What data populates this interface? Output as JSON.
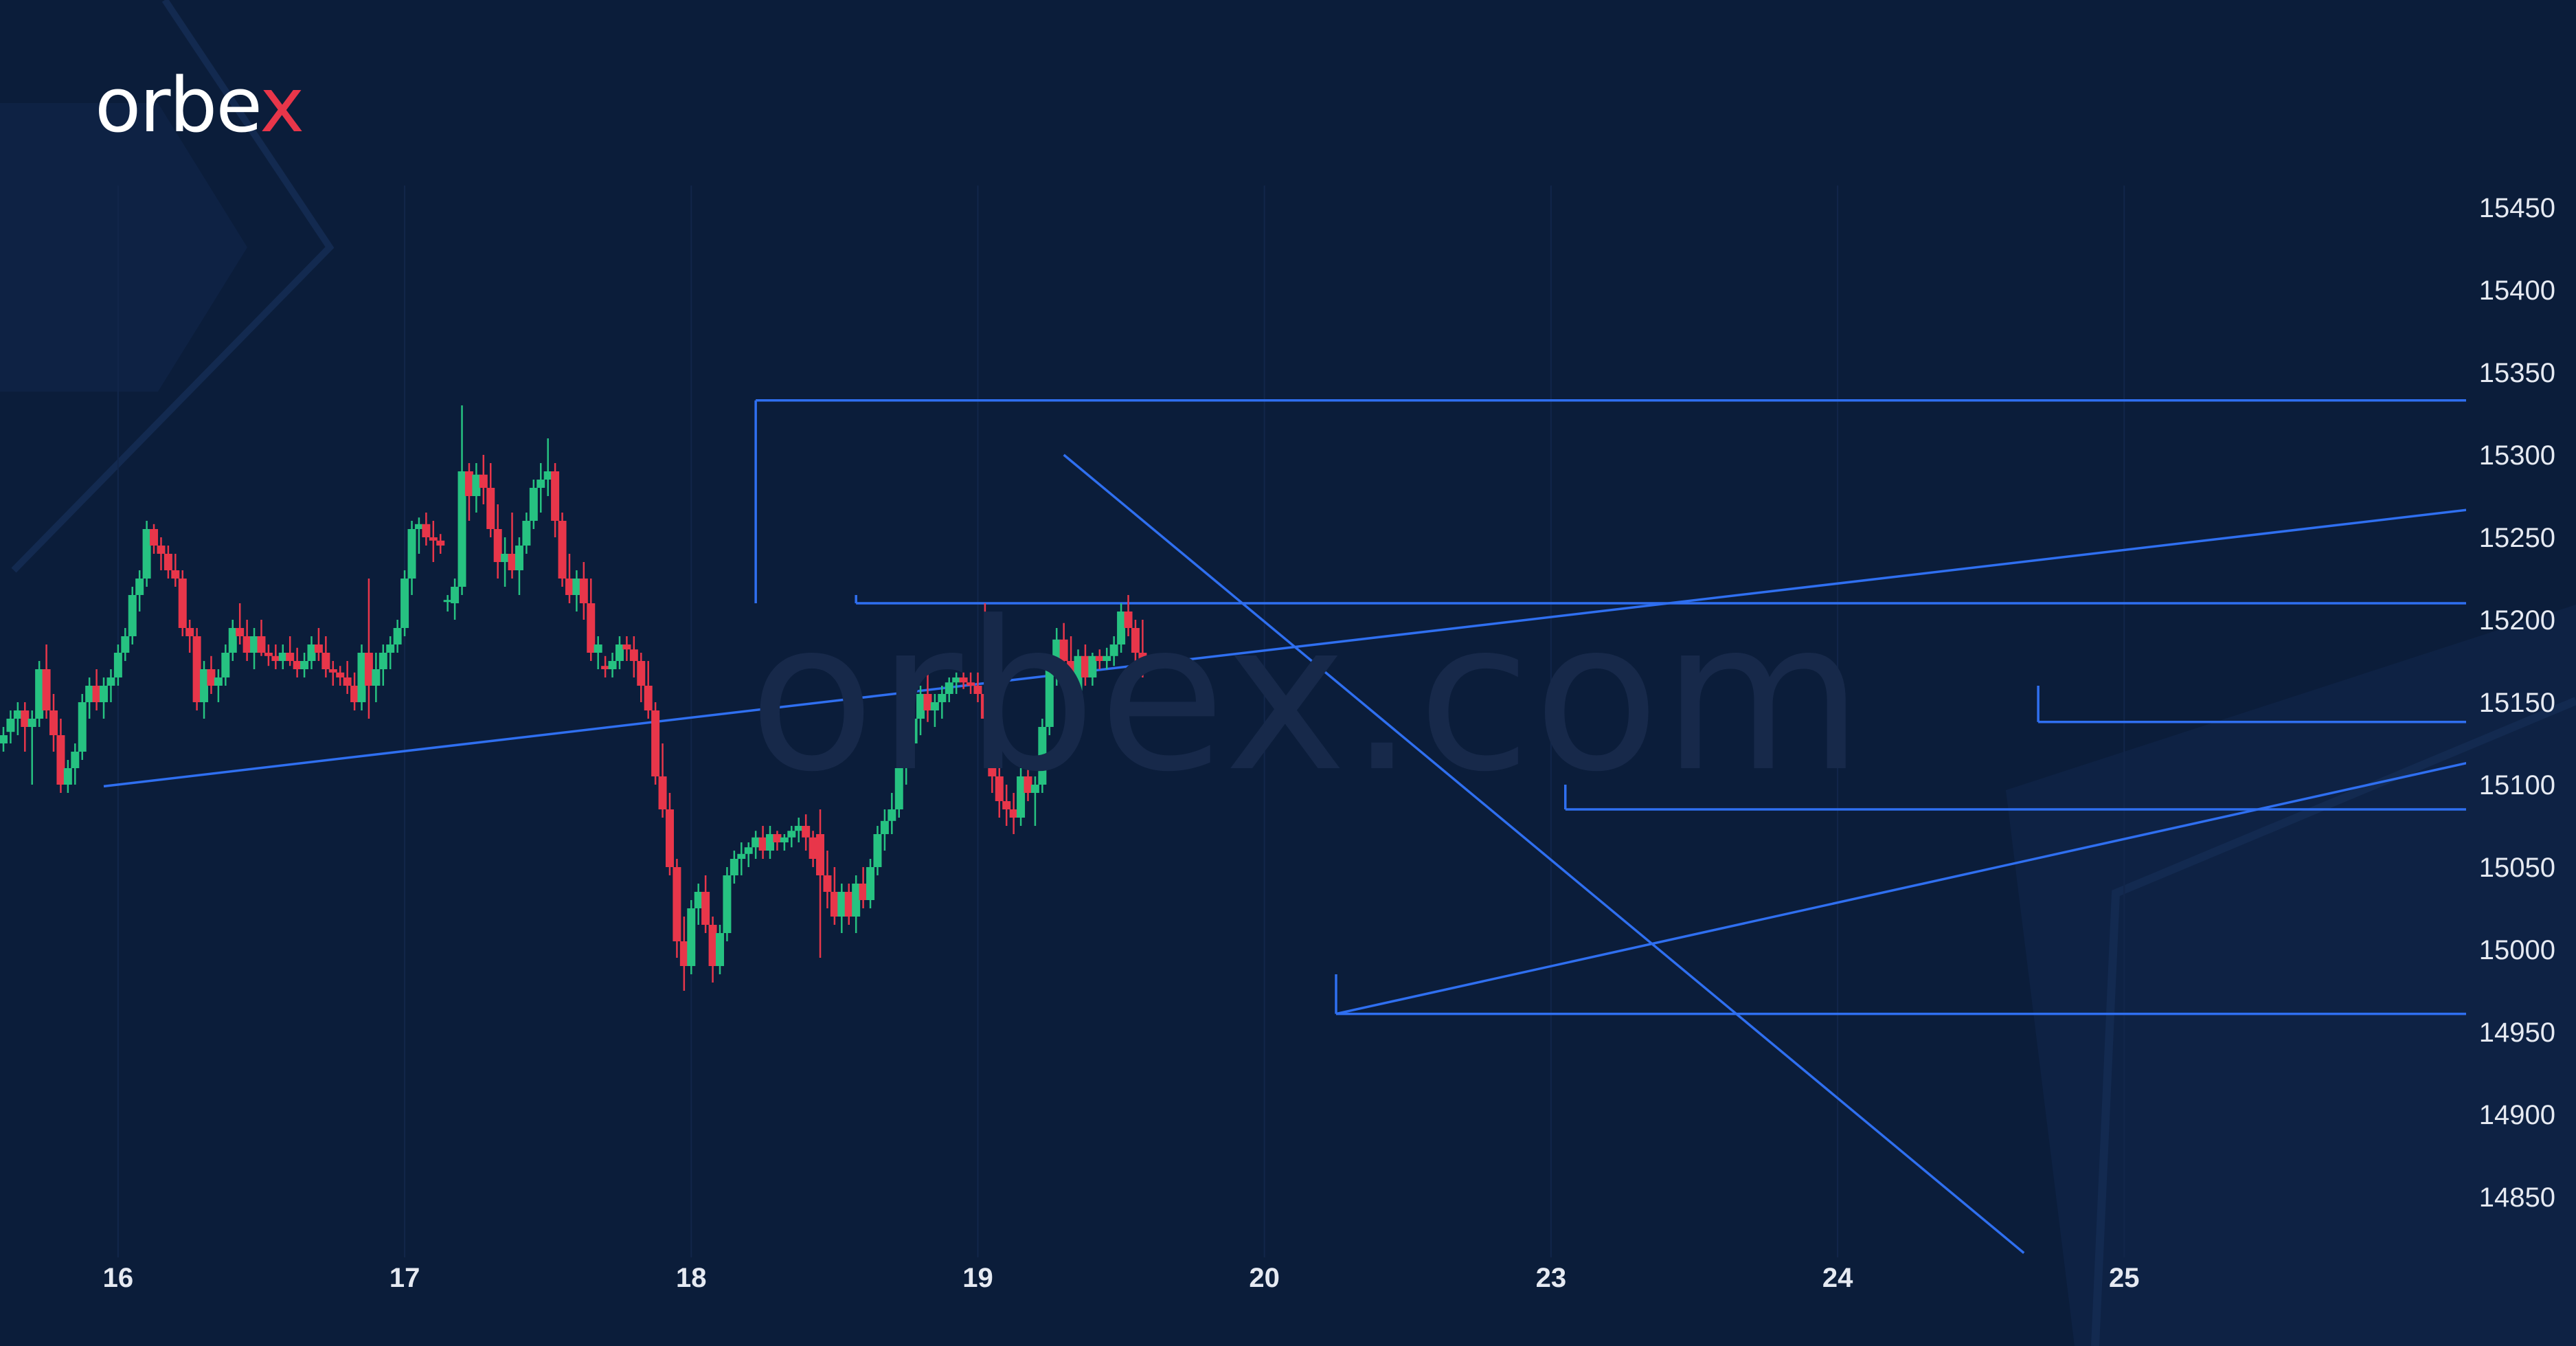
{
  "brand": {
    "logo_main": "orbe",
    "logo_accent": "x",
    "watermark": "orbex.com"
  },
  "colors": {
    "background": "#0b1d3a",
    "bull": "#26c281",
    "bear": "#e8364a",
    "lines": "#2f6ff0",
    "text": "#e6eaf2"
  },
  "chart_data": {
    "type": "candlestick",
    "title": "",
    "xlabel": "",
    "ylabel": "",
    "ylim": [
      14810,
      15480
    ],
    "y_ticks": [
      15450,
      15400,
      15350,
      15300,
      15250,
      15200,
      15150,
      15100,
      15050,
      15000,
      14950,
      14900,
      14850
    ],
    "x_ticks": [
      {
        "label": "16",
        "pos": 16
      },
      {
        "label": "17",
        "pos": 56
      },
      {
        "label": "18",
        "pos": 96
      },
      {
        "label": "19",
        "pos": 136
      },
      {
        "label": "20",
        "pos": 176
      },
      {
        "label": "23",
        "pos": 216
      },
      {
        "label": "24",
        "pos": 256
      },
      {
        "label": "25",
        "pos": 296
      }
    ],
    "candles": [
      [
        15125,
        15135,
        15120,
        15130
      ],
      [
        15132,
        15145,
        15125,
        15140
      ],
      [
        15140,
        15150,
        15130,
        15145
      ],
      [
        15145,
        15150,
        15120,
        15135
      ],
      [
        15135,
        15145,
        15100,
        15140
      ],
      [
        15140,
        15175,
        15135,
        15170
      ],
      [
        15170,
        15185,
        15140,
        15145
      ],
      [
        15145,
        15155,
        15120,
        15130
      ],
      [
        15130,
        15140,
        15095,
        15100
      ],
      [
        15100,
        15115,
        15095,
        15110
      ],
      [
        15110,
        15125,
        15100,
        15120
      ],
      [
        15120,
        15155,
        15115,
        15150
      ],
      [
        15150,
        15165,
        15140,
        15160
      ],
      [
        15160,
        15170,
        15145,
        15150
      ],
      [
        15150,
        15165,
        15140,
        15160
      ],
      [
        15160,
        15170,
        15150,
        15165
      ],
      [
        15165,
        15185,
        15160,
        15180
      ],
      [
        15180,
        15195,
        15175,
        15190
      ],
      [
        15190,
        15220,
        15185,
        15215
      ],
      [
        15215,
        15230,
        15205,
        15225
      ],
      [
        15225,
        15260,
        15220,
        15255
      ],
      [
        15255,
        15258,
        15240,
        15245
      ],
      [
        15245,
        15250,
        15230,
        15240
      ],
      [
        15240,
        15245,
        15225,
        15230
      ],
      [
        15230,
        15240,
        15220,
        15225
      ],
      [
        15225,
        15230,
        15190,
        15195
      ],
      [
        15195,
        15200,
        15180,
        15190
      ],
      [
        15190,
        15195,
        15145,
        15150
      ],
      [
        15150,
        15175,
        15140,
        15170
      ],
      [
        15170,
        15178,
        15155,
        15160
      ],
      [
        15160,
        15170,
        15150,
        15165
      ],
      [
        15165,
        15185,
        15160,
        15180
      ],
      [
        15180,
        15200,
        15175,
        15195
      ],
      [
        15195,
        15210,
        15185,
        15190
      ],
      [
        15190,
        15200,
        15175,
        15180
      ],
      [
        15180,
        15195,
        15170,
        15190
      ],
      [
        15190,
        15200,
        15178,
        15180
      ],
      [
        15180,
        15185,
        15172,
        15178
      ],
      [
        15178,
        15185,
        15170,
        15175
      ],
      [
        15175,
        15185,
        15170,
        15180
      ],
      [
        15180,
        15190,
        15172,
        15175
      ],
      [
        15175,
        15183,
        15165,
        15170
      ],
      [
        15170,
        15180,
        15165,
        15175
      ],
      [
        15175,
        15190,
        15170,
        15185
      ],
      [
        15185,
        15195,
        15175,
        15180
      ],
      [
        15180,
        15190,
        15165,
        15170
      ],
      [
        15170,
        15175,
        15160,
        15168
      ],
      [
        15168,
        15172,
        15160,
        15165
      ],
      [
        15165,
        15175,
        15155,
        15160
      ],
      [
        15160,
        15168,
        15145,
        15150
      ],
      [
        15150,
        15185,
        15145,
        15180
      ],
      [
        15180,
        15225,
        15140,
        15160
      ],
      [
        15160,
        15180,
        15150,
        15170
      ],
      [
        15170,
        15185,
        15160,
        15180
      ],
      [
        15180,
        15190,
        15170,
        15185
      ],
      [
        15185,
        15200,
        15180,
        15195
      ],
      [
        15195,
        15230,
        15190,
        15225
      ],
      [
        15225,
        15260,
        15215,
        15255
      ],
      [
        15255,
        15262,
        15240,
        15258
      ],
      [
        15258,
        15265,
        15245,
        15250
      ],
      [
        15250,
        15260,
        15235,
        15248
      ],
      [
        15248,
        15252,
        15240,
        15245
      ],
      [
        15212,
        15215,
        15205,
        15212
      ],
      [
        15210,
        15225,
        15200,
        15220
      ],
      [
        15220,
        15330,
        15215,
        15290
      ],
      [
        15290,
        15295,
        15260,
        15275
      ],
      [
        15275,
        15295,
        15265,
        15288
      ],
      [
        15288,
        15300,
        15270,
        15280
      ],
      [
        15280,
        15295,
        15250,
        15255
      ],
      [
        15255,
        15270,
        15225,
        15235
      ],
      [
        15235,
        15250,
        15220,
        15240
      ],
      [
        15240,
        15265,
        15225,
        15230
      ],
      [
        15230,
        15250,
        15215,
        15245
      ],
      [
        15245,
        15265,
        15240,
        15260
      ],
      [
        15260,
        15285,
        15255,
        15280
      ],
      [
        15280,
        15295,
        15265,
        15285
      ],
      [
        15285,
        15310,
        15275,
        15290
      ],
      [
        15290,
        15295,
        15250,
        15260
      ],
      [
        15260,
        15265,
        15220,
        15225
      ],
      [
        15225,
        15240,
        15210,
        15215
      ],
      [
        15215,
        15230,
        15205,
        15225
      ],
      [
        15225,
        15235,
        15200,
        15210
      ],
      [
        15210,
        15225,
        15175,
        15180
      ],
      [
        15180,
        15190,
        15170,
        15185
      ],
      [
        15172,
        15178,
        15165,
        15170
      ],
      [
        15170,
        15180,
        15165,
        15175
      ],
      [
        15175,
        15190,
        15170,
        15185
      ],
      [
        15185,
        15190,
        15175,
        15182
      ],
      [
        15182,
        15190,
        15165,
        15175
      ],
      [
        15175,
        15180,
        15150,
        15160
      ],
      [
        15160,
        15175,
        15140,
        15145
      ],
      [
        15145,
        15150,
        15100,
        15105
      ],
      [
        15105,
        15125,
        15080,
        15085
      ],
      [
        15085,
        15095,
        15045,
        15050
      ],
      [
        15050,
        15055,
        14995,
        15005
      ],
      [
        15005,
        15020,
        14975,
        14990
      ],
      [
        14990,
        15030,
        14985,
        15025
      ],
      [
        15025,
        15040,
        15015,
        15035
      ],
      [
        15035,
        15045,
        15010,
        15015
      ],
      [
        15015,
        15020,
        14980,
        14990
      ],
      [
        14990,
        15015,
        14985,
        15010
      ],
      [
        15010,
        15050,
        15005,
        15045
      ],
      [
        15045,
        15060,
        15040,
        15055
      ],
      [
        15055,
        15065,
        15045,
        15058
      ],
      [
        15058,
        15065,
        15050,
        15062
      ],
      [
        15062,
        15072,
        15055,
        15068
      ],
      [
        15068,
        15075,
        15055,
        15060
      ],
      [
        15060,
        15075,
        15055,
        15070
      ],
      [
        15070,
        15072,
        15060,
        15065
      ],
      [
        15065,
        15070,
        15060,
        15068
      ],
      [
        15068,
        15075,
        15062,
        15072
      ],
      [
        15072,
        15080,
        15065,
        15075
      ],
      [
        15075,
        15082,
        15060,
        15068
      ],
      [
        15068,
        15072,
        15050,
        15055
      ],
      [
        15070,
        15085,
        14995,
        15045
      ],
      [
        15045,
        15060,
        15025,
        15035
      ],
      [
        15035,
        15050,
        15015,
        15020
      ],
      [
        15020,
        15040,
        15010,
        15035
      ],
      [
        15035,
        15040,
        15015,
        15020
      ],
      [
        15020,
        15045,
        15010,
        15040
      ],
      [
        15040,
        15050,
        15025,
        15030
      ],
      [
        15030,
        15055,
        15025,
        15050
      ],
      [
        15050,
        15075,
        15045,
        15070
      ],
      [
        15070,
        15085,
        15060,
        15078
      ],
      [
        15078,
        15095,
        15070,
        15085
      ],
      [
        15085,
        15115,
        15080,
        15110
      ],
      [
        15110,
        15130,
        15100,
        15125
      ],
      [
        15125,
        15145,
        15110,
        15140
      ],
      [
        15140,
        15160,
        15130,
        15155
      ],
      [
        15155,
        15168,
        15138,
        15145
      ],
      [
        15145,
        15155,
        15135,
        15150
      ],
      [
        15150,
        15160,
        15140,
        15155
      ],
      [
        15155,
        15165,
        15150,
        15162
      ],
      [
        15162,
        15168,
        15155,
        15165
      ],
      [
        15165,
        15168,
        15158,
        15162
      ],
      [
        15162,
        15168,
        15155,
        15160
      ],
      [
        15160,
        15168,
        15150,
        15155
      ],
      [
        15155,
        15210,
        15120,
        15140
      ],
      [
        15140,
        15150,
        15095,
        15105
      ],
      [
        15105,
        15115,
        15080,
        15090
      ],
      [
        15090,
        15100,
        15075,
        15085
      ],
      [
        15085,
        15095,
        15070,
        15080
      ],
      [
        15080,
        15110,
        15075,
        15105
      ],
      [
        15105,
        15115,
        15090,
        15095
      ],
      [
        15095,
        15105,
        15075,
        15100
      ],
      [
        15100,
        15140,
        15095,
        15135
      ],
      [
        15135,
        15175,
        15130,
        15170
      ],
      [
        15170,
        15195,
        15160,
        15188
      ],
      [
        15188,
        15198,
        15170,
        15175
      ],
      [
        15175,
        15190,
        15140,
        15155
      ],
      [
        15155,
        15182,
        15150,
        15178
      ],
      [
        15178,
        15185,
        15160,
        15165
      ],
      [
        15165,
        15180,
        15160,
        15178
      ],
      [
        15178,
        15182,
        15170,
        15175
      ],
      [
        15175,
        15183,
        15170,
        15178
      ],
      [
        15178,
        15190,
        15172,
        15185
      ],
      [
        15185,
        15210,
        15180,
        15205
      ],
      [
        15205,
        15215,
        15190,
        15195
      ],
      [
        15195,
        15200,
        15175,
        15180
      ],
      [
        15180,
        15200,
        15165,
        15170
      ]
    ],
    "annotations": {
      "horizontal_lines": [
        {
          "y": 15333,
          "from": 105,
          "to": 380
        },
        {
          "y": 15210,
          "from": 119,
          "to": 380
        },
        {
          "y": 15138,
          "from": 284,
          "to": 380
        },
        {
          "y": 15085,
          "from": 218,
          "to": 380
        },
        {
          "y": 14961,
          "from": 186,
          "to": 380
        }
      ],
      "vertical_segments": [
        {
          "x": 105,
          "y1": 15210,
          "y2": 15333
        },
        {
          "x": 119,
          "y1": 15210,
          "y2": 15215
        },
        {
          "x": 284,
          "y1": 15138,
          "y2": 15160
        },
        {
          "x": 218,
          "y1": 15085,
          "y2": 15100
        },
        {
          "x": 186,
          "y1": 14961,
          "y2": 14985
        }
      ],
      "trendlines": [
        {
          "x1": 14,
          "y1": 15099,
          "x2": 380,
          "y2": 15285
        },
        {
          "x1": 148,
          "y1": 15300,
          "x2": 282,
          "y2": 14816
        },
        {
          "x1": 186,
          "y1": 14961,
          "x2": 380,
          "y2": 15148
        }
      ]
    }
  }
}
